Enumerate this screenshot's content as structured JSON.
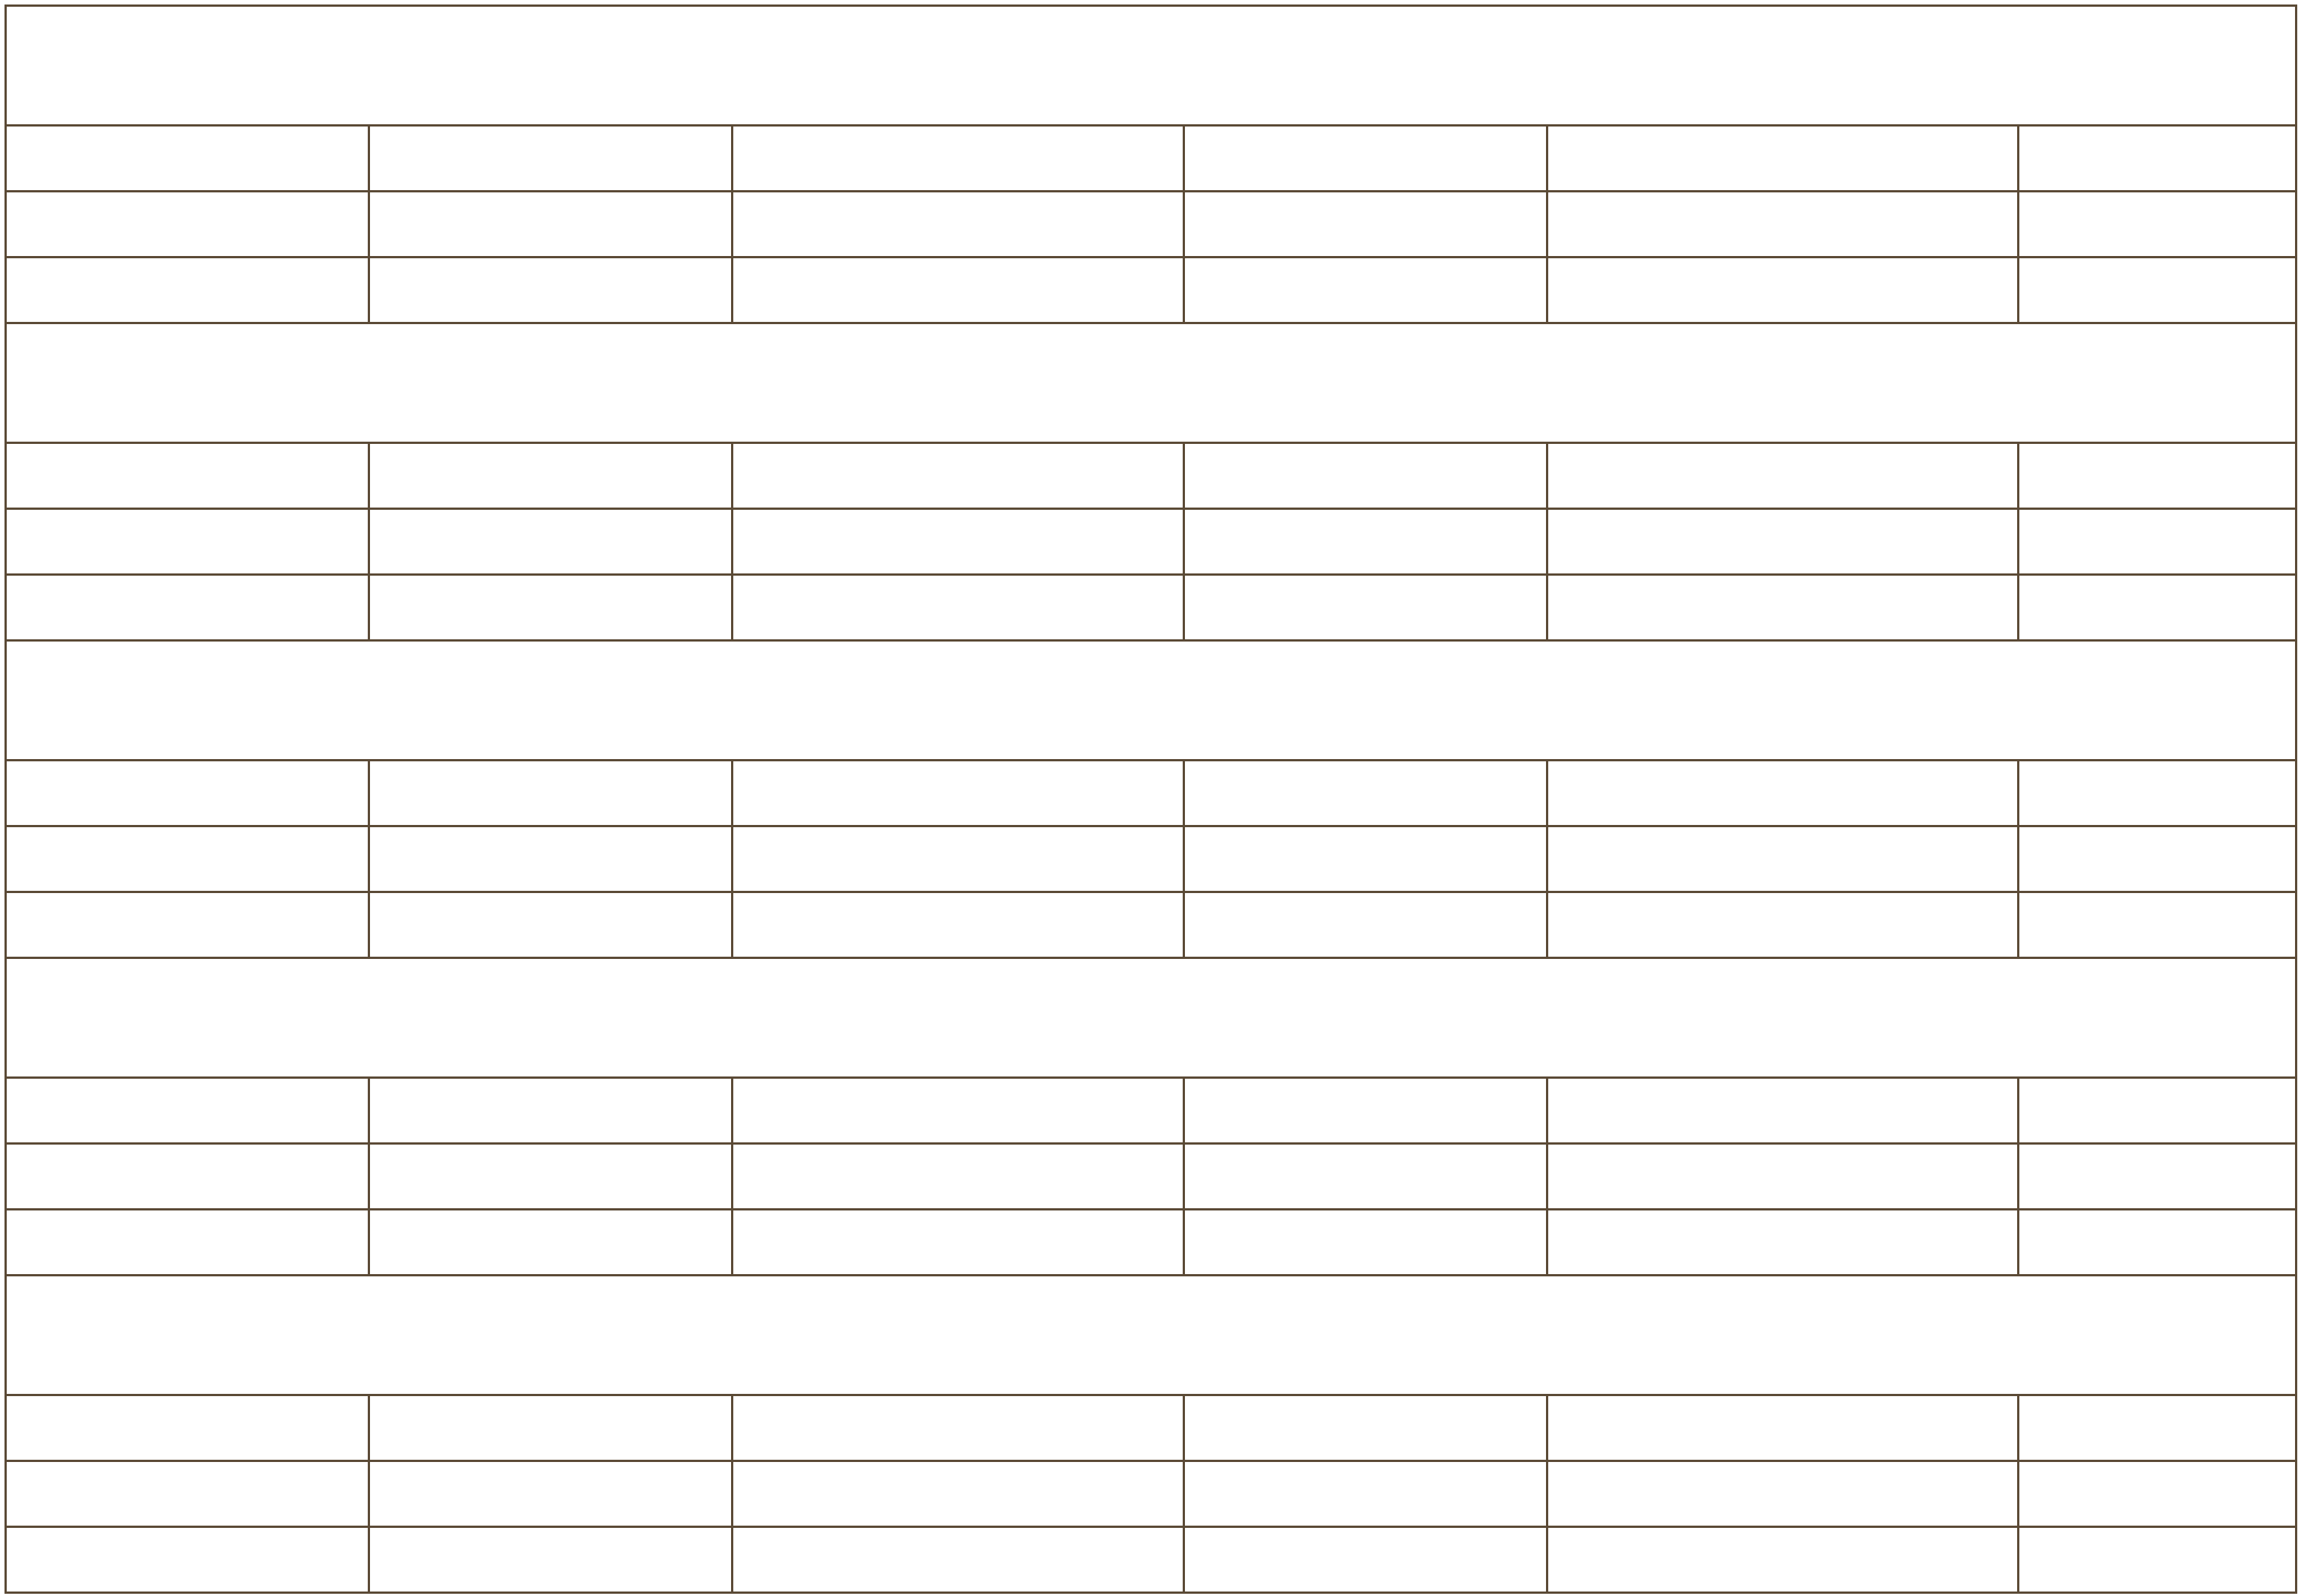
{
  "table": {
    "sections": [
      {
        "header": "",
        "rows": [
          [
            "",
            "",
            "",
            "",
            "",
            ""
          ],
          [
            "",
            "",
            "",
            "",
            "",
            ""
          ],
          [
            "",
            "",
            "",
            "",
            "",
            ""
          ]
        ]
      },
      {
        "header": "",
        "rows": [
          [
            "",
            "",
            "",
            "",
            "",
            ""
          ],
          [
            "",
            "",
            "",
            "",
            "",
            ""
          ],
          [
            "",
            "",
            "",
            "",
            "",
            ""
          ]
        ]
      },
      {
        "header": "",
        "rows": [
          [
            "",
            "",
            "",
            "",
            "",
            ""
          ],
          [
            "",
            "",
            "",
            "",
            "",
            ""
          ],
          [
            "",
            "",
            "",
            "",
            "",
            ""
          ]
        ]
      },
      {
        "header": "",
        "rows": [
          [
            "",
            "",
            "",
            "",
            "",
            ""
          ],
          [
            "",
            "",
            "",
            "",
            "",
            ""
          ],
          [
            "",
            "",
            "",
            "",
            "",
            ""
          ]
        ]
      },
      {
        "header": "",
        "rows": [
          [
            "",
            "",
            "",
            "",
            "",
            ""
          ],
          [
            "",
            "",
            "",
            "",
            "",
            ""
          ],
          [
            "",
            "",
            "",
            "",
            "",
            ""
          ]
        ]
      }
    ],
    "border_color": "#5b4a36",
    "background_color": "#ffffff"
  }
}
